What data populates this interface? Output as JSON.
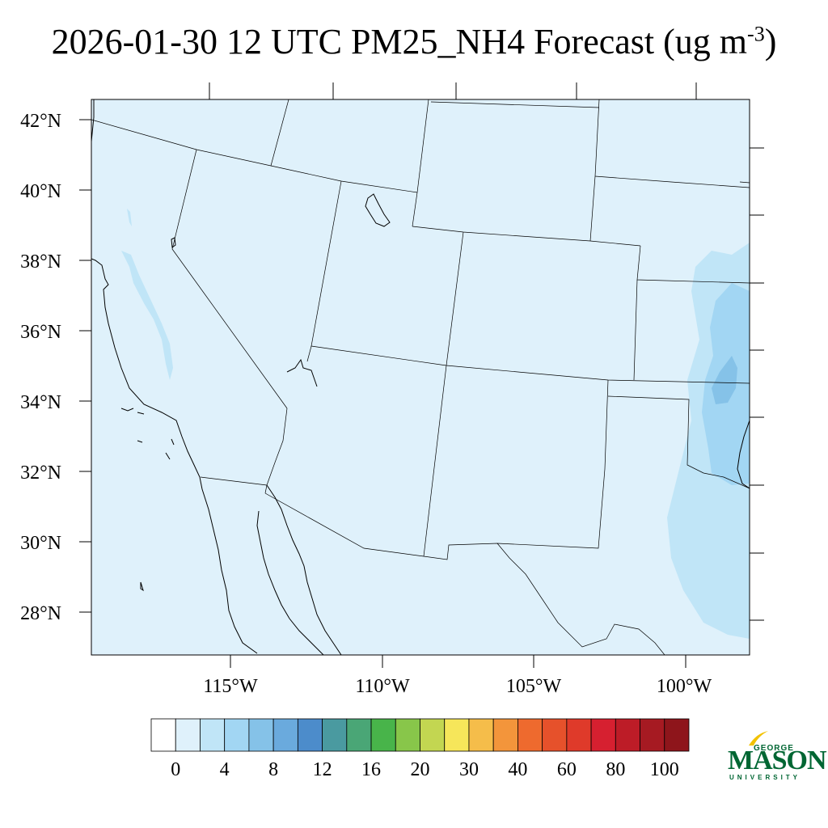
{
  "title": {
    "main": "2026-01-30 12 UTC PM25_NH4 Forecast (ug m",
    "sup": "-3",
    "close": ")"
  },
  "map": {
    "region": "Western United States",
    "lat_labels": [
      "42°N",
      "40°N",
      "38°N",
      "36°N",
      "34°N",
      "32°N",
      "30°N",
      "28°N"
    ],
    "lon_labels": [
      "115°W",
      "110°W",
      "105°W",
      "100°W"
    ],
    "background_color": "#dff1fb"
  },
  "colorbar": {
    "colors": [
      "#ffffff",
      "#dff1fb",
      "#c0e5f7",
      "#a2d6f3",
      "#85c2e8",
      "#6aaadd",
      "#4c8ccb",
      "#4a9aa0",
      "#4aa676",
      "#48b44a",
      "#88c64a",
      "#c3d651",
      "#f6e65a",
      "#f5bd4a",
      "#f3953b",
      "#ee6a2e",
      "#e6512b",
      "#df3a2a",
      "#d62030",
      "#bd1c27",
      "#a61a22",
      "#8e151b"
    ],
    "tick_labels": [
      "0",
      "4",
      "8",
      "12",
      "16",
      "20",
      "30",
      "40",
      "60",
      "80",
      "100"
    ]
  },
  "logo": {
    "line1": "GEORGE",
    "line2": "MASON",
    "line3": "UNIVERSITY"
  }
}
